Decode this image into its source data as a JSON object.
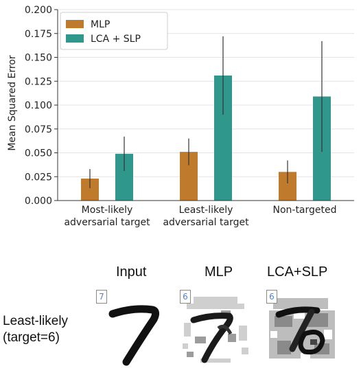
{
  "chart_data": {
    "type": "bar",
    "categories": [
      [
        "Most-likely",
        "adversarial target"
      ],
      [
        "Least-likely",
        "adversarial target"
      ],
      [
        "Non-targeted"
      ]
    ],
    "series": [
      {
        "name": "MLP",
        "color": "#c07a2c",
        "values": [
          0.023,
          0.051,
          0.03
        ],
        "errors": [
          0.01,
          0.014,
          0.012
        ]
      },
      {
        "name": "LCA + SLP",
        "color": "#2f978c",
        "values": [
          0.049,
          0.131,
          0.109
        ],
        "errors": [
          0.018,
          0.041,
          0.058
        ]
      }
    ],
    "ylabel": "Mean Squared Error",
    "ylim": [
      0,
      0.2
    ],
    "yticks": [
      "0.000",
      "0.025",
      "0.050",
      "0.075",
      "0.100",
      "0.125",
      "0.150",
      "0.175",
      "0.200"
    ],
    "grid": true,
    "legend": "top-left"
  },
  "figure": {
    "headers": [
      "Input",
      "MLP",
      "LCA+SLP"
    ],
    "row_label": [
      "Least-likely",
      "(target=6)"
    ],
    "badges": [
      "7",
      "6",
      "6"
    ]
  }
}
